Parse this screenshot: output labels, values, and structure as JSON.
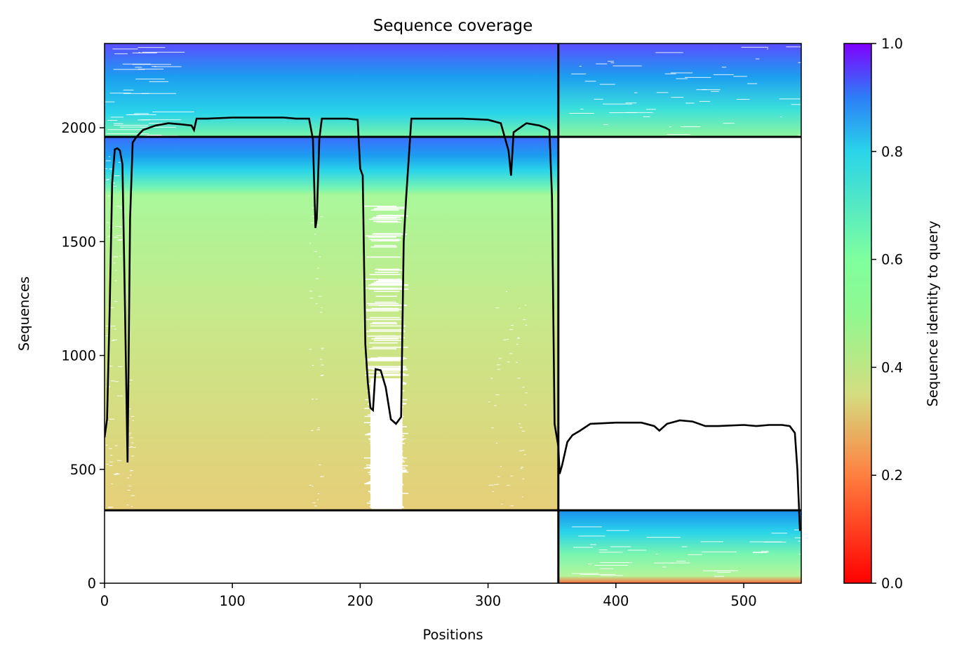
{
  "chart_data": {
    "type": "heatmap",
    "title": "Sequence coverage",
    "xlabel": "Positions",
    "ylabel": "Sequences",
    "xlim": [
      0,
      545
    ],
    "ylim": [
      0,
      2370
    ],
    "xticks": [
      "0",
      "100",
      "200",
      "300",
      "400",
      "500"
    ],
    "xtick_values": [
      0,
      100,
      200,
      300,
      400,
      500
    ],
    "yticks": [
      "0",
      "500",
      "1000",
      "1500",
      "2000"
    ],
    "ytick_values": [
      0,
      500,
      1000,
      1500,
      2000
    ],
    "colorbar": {
      "label": "Sequence identity to query",
      "colormap": "rainbow_r",
      "range": [
        0,
        1
      ],
      "ticks": [
        "0.0",
        "0.2",
        "0.4",
        "0.6",
        "0.8",
        "1.0"
      ],
      "tick_values": [
        0,
        0.2,
        0.4,
        0.6,
        0.8,
        1.0
      ],
      "colors": [
        "#ff0000",
        "#ff7f40",
        "#d4dd80",
        "#7fff9e",
        "#2ad4e9",
        "#8000ff"
      ]
    },
    "domain_boundaries": {
      "vertical_x": 355,
      "horizontal_y": [
        320,
        1960
      ]
    },
    "blocks": [
      {
        "x": [
          0,
          355
        ],
        "y": [
          1960,
          2370
        ],
        "identity_range": [
          0.6,
          0.9
        ]
      },
      {
        "x": [
          355,
          545
        ],
        "y": [
          1960,
          2370
        ],
        "identity_range": [
          0.52,
          0.9
        ]
      },
      {
        "x": [
          0,
          355
        ],
        "y": [
          320,
          1960
        ],
        "identity_range": [
          0.32,
          0.88
        ]
      },
      {
        "x": [
          355,
          545
        ],
        "y": [
          0,
          320
        ],
        "identity_range": [
          0.2,
          0.8
        ]
      }
    ],
    "coverage_line": {
      "x": [
        0,
        2,
        4,
        6,
        8,
        10,
        12,
        14,
        16,
        18,
        20,
        22,
        25,
        30,
        40,
        50,
        60,
        68,
        70,
        72,
        80,
        100,
        120,
        140,
        150,
        160,
        163,
        165,
        166,
        168,
        170,
        180,
        190,
        198,
        200,
        202,
        204,
        206,
        208,
        210,
        212,
        216,
        220,
        224,
        228,
        232,
        234,
        236,
        240,
        260,
        280,
        300,
        310,
        314,
        316,
        318,
        320,
        330,
        340,
        345,
        348,
        350,
        352,
        355,
        356,
        358,
        362,
        366,
        372,
        380,
        400,
        420,
        430,
        434,
        440,
        450,
        460,
        470,
        480,
        500,
        510,
        520,
        530,
        536,
        540,
        542,
        544
      ],
      "y": [
        640,
        720,
        1200,
        1760,
        1905,
        1910,
        1900,
        1840,
        1200,
        530,
        1600,
        1935,
        1960,
        1990,
        2010,
        2020,
        2015,
        2010,
        1990,
        2040,
        2040,
        2045,
        2045,
        2045,
        2040,
        2040,
        1950,
        1560,
        1600,
        1950,
        2040,
        2040,
        2040,
        2035,
        1820,
        1790,
        1050,
        880,
        770,
        760,
        940,
        935,
        860,
        720,
        700,
        730,
        1500,
        1700,
        2040,
        2040,
        2040,
        2035,
        2020,
        1940,
        1900,
        1790,
        1980,
        2020,
        2010,
        2000,
        1990,
        1700,
        700,
        600,
        480,
        520,
        620,
        650,
        670,
        700,
        705,
        705,
        690,
        670,
        700,
        715,
        710,
        690,
        690,
        695,
        690,
        695,
        695,
        690,
        660,
        500,
        230
      ]
    }
  }
}
